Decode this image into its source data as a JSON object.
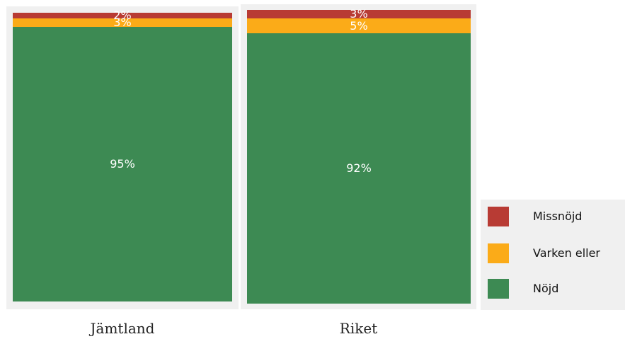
{
  "chart_data": {
    "type": "bar",
    "stacked": true,
    "normalized": true,
    "categories": [
      "Jämtland",
      "Riket"
    ],
    "series": [
      {
        "name": "Nöjd",
        "values": [
          95,
          92
        ],
        "labels": [
          "95%",
          "92%"
        ],
        "color": "#3d8a53"
      },
      {
        "name": "Varken eller",
        "values": [
          3,
          5
        ],
        "labels": [
          "3%",
          "5%"
        ],
        "color": "#fbab18"
      },
      {
        "name": "Missnöjd",
        "values": [
          2,
          3
        ],
        "labels": [
          "2%",
          "3%"
        ],
        "color": "#b83b34"
      }
    ],
    "legend_labels": [
      "Missnöjd",
      "Varken eller",
      "Nöjd"
    ],
    "ylim": [
      0,
      100
    ],
    "grid": false,
    "legend_position": "bottom-right"
  }
}
